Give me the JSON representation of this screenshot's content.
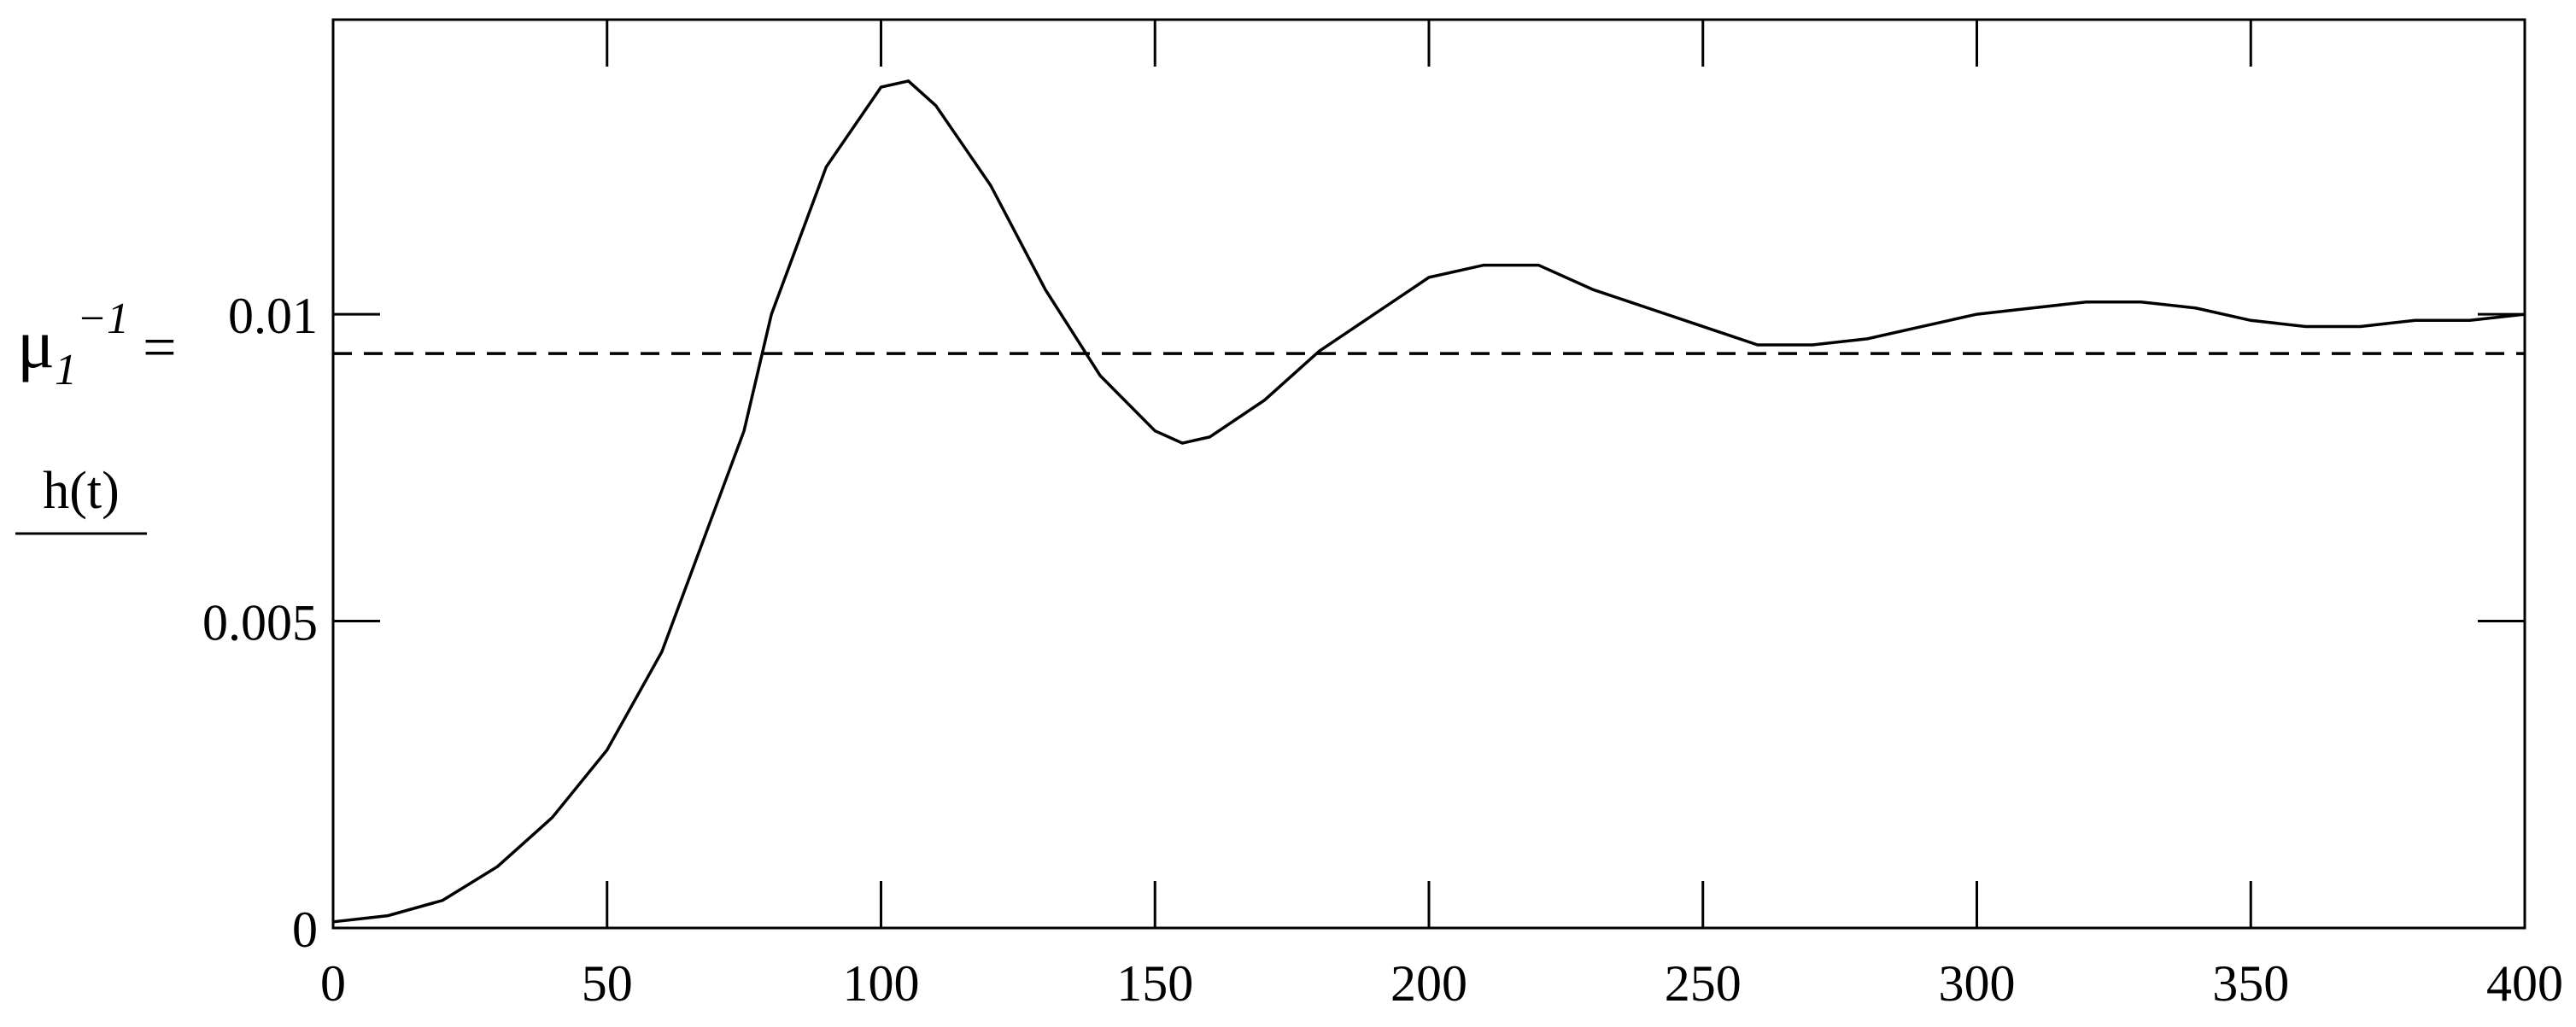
{
  "chart_data": {
    "type": "line",
    "xlim": [
      0,
      400
    ],
    "xticks": [
      0,
      50,
      100,
      150,
      200,
      250,
      300,
      350,
      400
    ],
    "ylim": [
      0,
      0.0148
    ],
    "yticks": [
      0,
      0.005,
      0.01
    ],
    "series": [
      {
        "name": "h(t)",
        "color": "#000000",
        "dash": false,
        "x": [
          0,
          10,
          20,
          30,
          40,
          50,
          60,
          70,
          75,
          80,
          90,
          100,
          105,
          110,
          120,
          130,
          140,
          150,
          155,
          160,
          170,
          180,
          190,
          200,
          210,
          220,
          230,
          240,
          250,
          260,
          270,
          280,
          290,
          300,
          310,
          320,
          330,
          340,
          350,
          360,
          370,
          380,
          390,
          400
        ],
        "values": [
          0.0001,
          0.0002,
          0.00045,
          0.001,
          0.0018,
          0.0029,
          0.0045,
          0.0069,
          0.0081,
          0.01,
          0.0124,
          0.0137,
          0.0138,
          0.0134,
          0.0121,
          0.0104,
          0.009,
          0.0081,
          0.0079,
          0.008,
          0.0086,
          0.0094,
          0.01,
          0.0106,
          0.0108,
          0.0108,
          0.0104,
          0.0101,
          0.0098,
          0.0095,
          0.0095,
          0.0096,
          0.0098,
          0.01,
          0.0101,
          0.0102,
          0.0102,
          0.0101,
          0.0099,
          0.0098,
          0.0098,
          0.0099,
          0.0099,
          0.01
        ]
      },
      {
        "name": "μ",
        "name_sub": "1",
        "name_sup": "−1",
        "name_suffix": "=",
        "color": "#000000",
        "dash": true,
        "x": [
          0,
          400
        ],
        "values": [
          0.00936,
          0.00936
        ]
      }
    ]
  }
}
